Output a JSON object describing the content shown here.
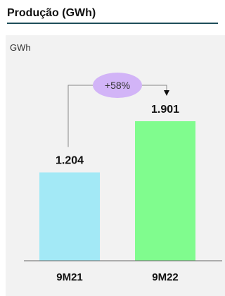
{
  "title": "Produção (GWh)",
  "chart_data": {
    "type": "bar",
    "ylabel": "GWh",
    "categories": [
      "9M21",
      "9M22"
    ],
    "values": [
      1204,
      1901
    ],
    "value_labels": [
      "1.204",
      "1.901"
    ],
    "ylim": [
      0,
      2100
    ],
    "colors": [
      "#a3e9f6",
      "#80fc8e"
    ],
    "growth_label": "+58%",
    "growth_color": "#d2b4f7"
  }
}
